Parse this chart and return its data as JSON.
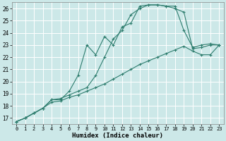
{
  "xlabel": "Humidex (Indice chaleur)",
  "bg_color": "#cce8e8",
  "grid_color": "#c0d8d8",
  "line_color": "#2e7d6e",
  "xlim": [
    -0.5,
    23.5
  ],
  "ylim": [
    16.5,
    26.5
  ],
  "xticks": [
    0,
    1,
    2,
    3,
    4,
    5,
    6,
    7,
    8,
    9,
    10,
    11,
    12,
    13,
    14,
    15,
    16,
    17,
    18,
    19,
    20,
    21,
    22,
    23
  ],
  "yticks": [
    17,
    18,
    19,
    20,
    21,
    22,
    23,
    24,
    25,
    26
  ],
  "series": [
    {
      "x": [
        0,
        1,
        2,
        3,
        4,
        5,
        6,
        7,
        8,
        9,
        10,
        11,
        12,
        13,
        14,
        15,
        16,
        17,
        18,
        19,
        20,
        21,
        22,
        23
      ],
      "y": [
        16.7,
        17.0,
        17.4,
        17.8,
        18.5,
        18.5,
        19.2,
        20.5,
        23.0,
        22.2,
        23.7,
        23.0,
        24.5,
        24.8,
        26.2,
        26.3,
        26.3,
        26.2,
        26.2,
        24.2,
        22.8,
        23.0,
        23.1,
        23.0
      ]
    },
    {
      "x": [
        0,
        1,
        2,
        3,
        4,
        5,
        6,
        7,
        8,
        9,
        10,
        11,
        12,
        13,
        14,
        15,
        16,
        17,
        18,
        19,
        20,
        21,
        22,
        23
      ],
      "y": [
        16.7,
        17.0,
        17.4,
        17.8,
        18.5,
        18.6,
        18.9,
        19.2,
        19.5,
        20.5,
        22.0,
        23.5,
        24.2,
        25.5,
        26.0,
        26.3,
        26.3,
        26.2,
        26.0,
        25.7,
        22.7,
        22.8,
        23.0,
        23.0
      ]
    },
    {
      "x": [
        0,
        1,
        2,
        3,
        4,
        5,
        6,
        7,
        8,
        9,
        10,
        11,
        12,
        13,
        14,
        15,
        16,
        17,
        18,
        19,
        20,
        21,
        22,
        23
      ],
      "y": [
        16.7,
        17.0,
        17.4,
        17.8,
        18.3,
        18.4,
        18.7,
        18.9,
        19.2,
        19.5,
        19.8,
        20.2,
        20.6,
        21.0,
        21.4,
        21.7,
        22.0,
        22.3,
        22.6,
        22.9,
        22.5,
        22.2,
        22.2,
        23.0
      ]
    }
  ]
}
